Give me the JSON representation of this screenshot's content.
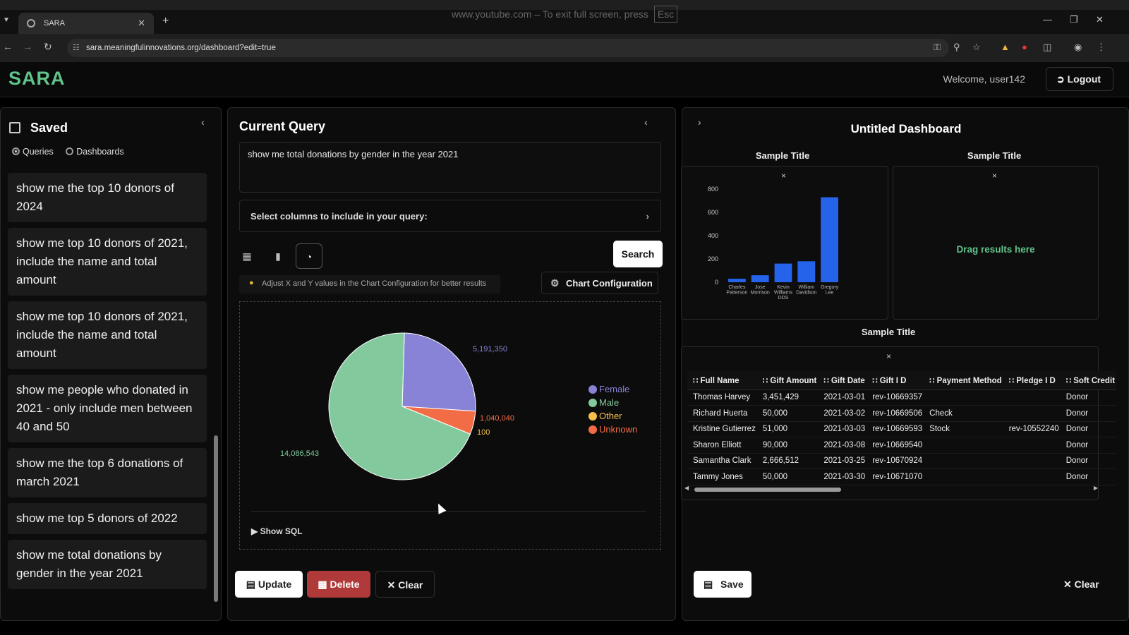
{
  "browser": {
    "tab_title": "SARA",
    "url": "sara.meaningfulinnovations.org/dashboard?edit=true",
    "fullscreen_message": "www.youtube.com – To exit full screen, press",
    "fullscreen_key": "Esc"
  },
  "app": {
    "logo": "SARA",
    "welcome": "Welcome, user142",
    "logout_label": "Logout",
    "accent_color": "#5fc38a"
  },
  "saved": {
    "title": "Saved",
    "radio_queries": "Queries",
    "radio_dashboards": "Dashboards",
    "items": [
      "show me the top 10 donors of 2024",
      "show me top 10 donors of 2021, include the name and total amount",
      "show me top 10 donors of 2021, include the name and total amount",
      "show me people who donated in 2021 - only include men between 40 and 50",
      "show me the top 6 donations of march 2021",
      "show me top 5 donors of 2022",
      "show me total donations by gender in the year 2021"
    ]
  },
  "query": {
    "title": "Current Query",
    "text": "show me total donations by gender in the year 2021",
    "column_select_label": "Select columns to include in your query:",
    "search_label": "Search",
    "hint": "Adjust X and Y values in the Chart Configuration for better results",
    "chart_config_label": "Chart Configuration",
    "show_sql_label": "Show",
    "show_sql_suffix": "SQL",
    "update_label": "Update",
    "delete_label": "Delete",
    "clear_label": "Clear"
  },
  "chart_data": [
    {
      "type": "pie",
      "categories": [
        "Female",
        "Male",
        "Other",
        "Unknown"
      ],
      "values": [
        5191350,
        14086543,
        100,
        1040040
      ],
      "labels": [
        "5,191,350",
        "14,086,543",
        "100",
        "1,040,040"
      ],
      "colors": [
        "#8883d6",
        "#82ca9d",
        "#f5c04a",
        "#f26d45"
      ],
      "legend_position": "right"
    },
    {
      "type": "bar",
      "title": "Sample Title",
      "categories": [
        "Charles Patterson",
        "Jose Morrison",
        "Kevin Williams DDS",
        "William Davidson",
        "Gregory Lee"
      ],
      "values": [
        30,
        60,
        160,
        180,
        730
      ],
      "ylim": [
        0,
        800
      ],
      "yticks": [
        0,
        200,
        400,
        600,
        800
      ],
      "color": "#2563eb"
    }
  ],
  "dashboard": {
    "title": "Untitled Dashboard",
    "card1_title": "Sample Title",
    "card2_title": "Sample Title",
    "card2_drop_text": "Drag results here",
    "card3_title": "Sample Title",
    "close_glyph": "×",
    "table": {
      "columns": [
        "Full Name",
        "Gift Amount",
        "Gift Date",
        "Gift I D",
        "Payment Method",
        "Pledge I D",
        "Soft Credit"
      ],
      "rows": [
        [
          "Thomas Harvey",
          "3,451,429",
          "2021-03-01",
          "rev-10669357",
          "",
          "",
          "Donor"
        ],
        [
          "Richard Huerta",
          "50,000",
          "2021-03-02",
          "rev-10669506",
          "Check",
          "",
          "Donor"
        ],
        [
          "Kristine Gutierrez",
          "51,000",
          "2021-03-03",
          "rev-10669593",
          "Stock",
          "rev-10552240",
          "Donor"
        ],
        [
          "Sharon Elliott",
          "90,000",
          "2021-03-08",
          "rev-10669540",
          "",
          "",
          "Donor"
        ],
        [
          "Samantha Clark",
          "2,666,512",
          "2021-03-25",
          "rev-10670924",
          "",
          "",
          "Donor"
        ],
        [
          "Tammy Jones",
          "50,000",
          "2021-03-30",
          "rev-10671070",
          "",
          "",
          "Donor"
        ]
      ]
    },
    "save_label": "Save",
    "clear_label": "Clear"
  }
}
